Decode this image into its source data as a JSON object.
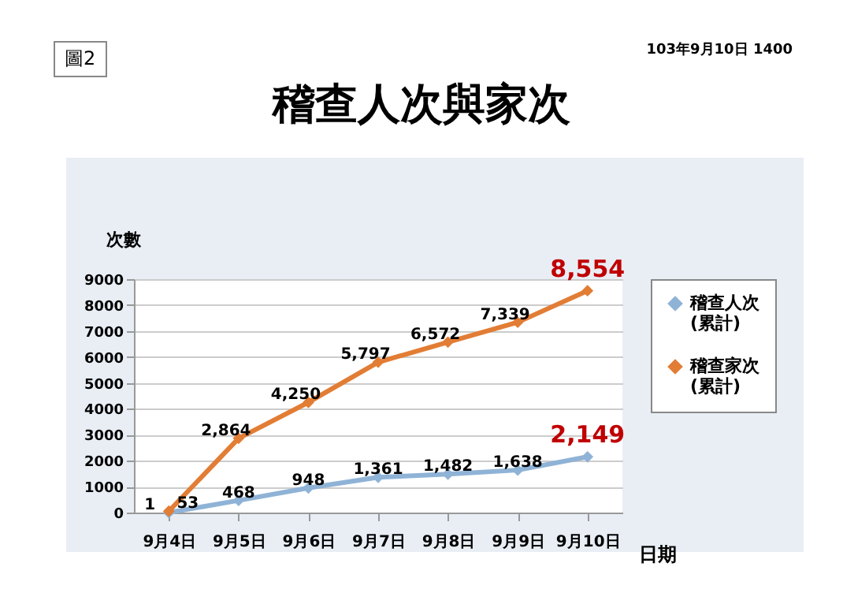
{
  "chart_data": {
    "type": "line",
    "title": "稽查人次與家次",
    "annotations": [
      "圖2",
      "103年9月10日 1400"
    ],
    "xlabel": "日期",
    "ylabel": "次數",
    "categories": [
      "9月4日",
      "9月5日",
      "9月6日",
      "9月7日",
      "9月8日",
      "9月9日",
      "9月10日"
    ],
    "series": [
      {
        "name": "稽查人次(累計)",
        "color": "#8fb3d6",
        "values": [
          1,
          468,
          948,
          1361,
          1482,
          1638,
          2149
        ],
        "value_labels": [
          "1",
          "468",
          "948",
          "1,361",
          "1,482",
          "1,638",
          "2,149"
        ]
      },
      {
        "name": "稽查家次(累計)",
        "color": "#e27d35",
        "values": [
          53,
          2864,
          4250,
          5797,
          6572,
          7339,
          8554
        ],
        "value_labels": [
          "53",
          "2,864",
          "4,250",
          "5,797",
          "6,572",
          "7,339",
          "8,554"
        ]
      }
    ],
    "ylim": [
      0,
      9000
    ],
    "yticks": [
      0,
      1000,
      2000,
      3000,
      4000,
      5000,
      6000,
      7000,
      8000,
      9000
    ],
    "grid": "y",
    "legend": "right",
    "marker": "diamond",
    "line_style": "solid",
    "data_labels": true
  }
}
